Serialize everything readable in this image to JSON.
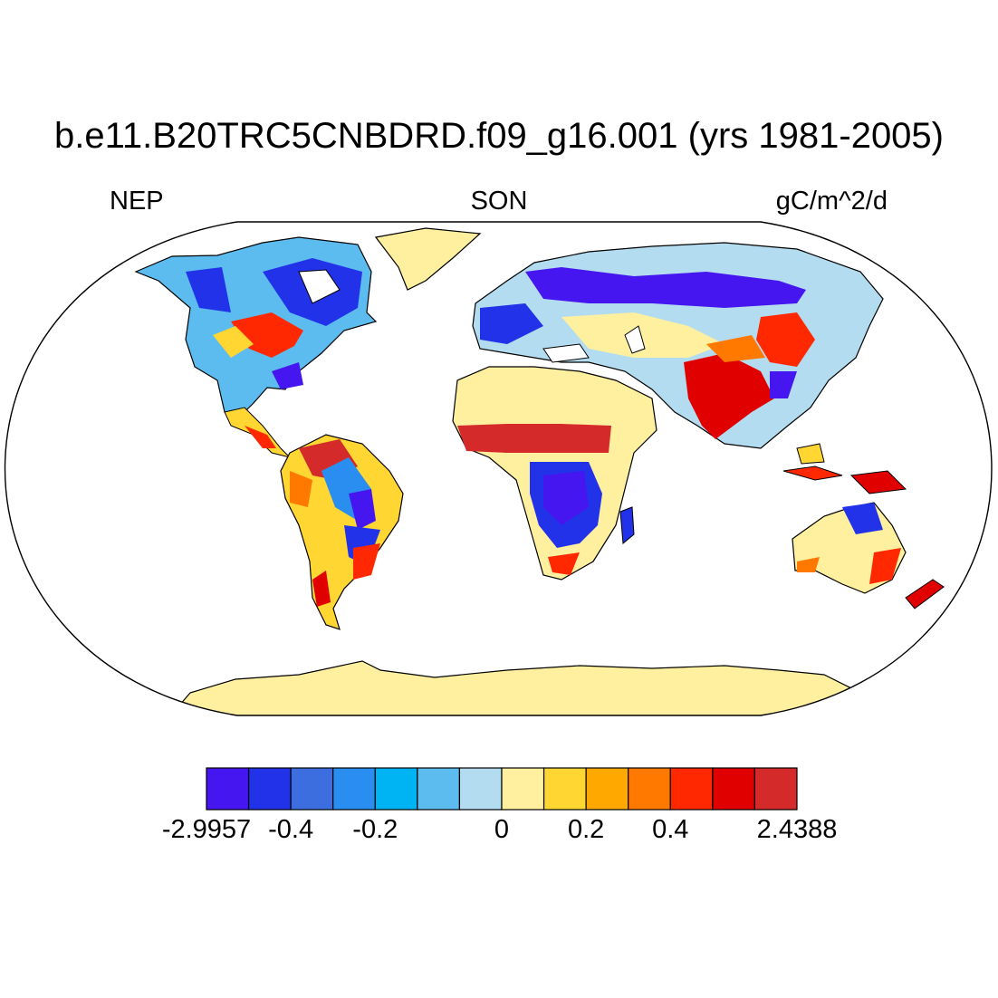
{
  "title": "b.e11.B20TRC5CNBDRD.f09_g16.001 (yrs 1981-2005)",
  "left_label": "NEP",
  "center_label": "SON",
  "right_label": "gC/m^2/d",
  "colorbar": {
    "colors": [
      "#4616f0",
      "#2232e8",
      "#3c6ee0",
      "#2a8ef0",
      "#00b4f4",
      "#5cbcf0",
      "#b4dcf0",
      "#fff0a0",
      "#ffd632",
      "#ffa800",
      "#ff7800",
      "#ff2800",
      "#e00000",
      "#d42a2a"
    ],
    "labels": [
      {
        "text": "-2.9957",
        "boundary": 0
      },
      {
        "text": "-0.4",
        "boundary": 2
      },
      {
        "text": "-0.2",
        "boundary": 4
      },
      {
        "text": "0",
        "boundary": 7
      },
      {
        "text": "0.2",
        "boundary": 9
      },
      {
        "text": "0.4",
        "boundary": 11
      },
      {
        "text": "2.4388",
        "boundary": 14
      }
    ]
  },
  "map": {
    "projection": "robinson",
    "ocean_color": "#ffffff",
    "antarctica_color": "#fff0a0"
  }
}
